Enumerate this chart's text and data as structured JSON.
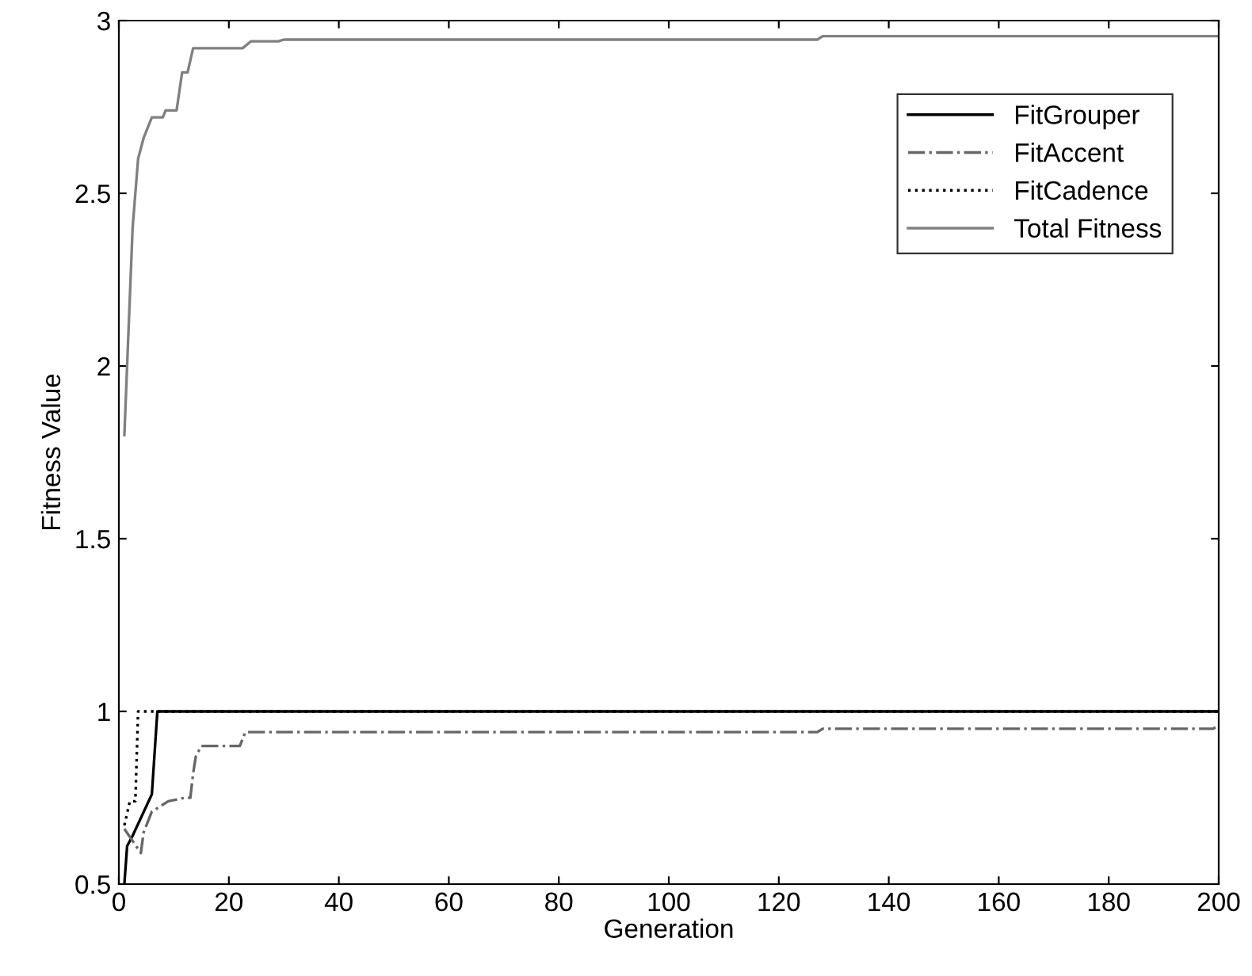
{
  "chart_data": {
    "type": "line",
    "xlabel": "Generation",
    "ylabel": "Fitness Value",
    "xlim": [
      0,
      200
    ],
    "xticks": [
      0,
      20,
      40,
      60,
      80,
      100,
      120,
      140,
      160,
      180,
      200
    ],
    "ylim": [
      0.5,
      3
    ],
    "yticks": [
      0.5,
      1,
      1.5,
      2,
      2.5,
      3
    ],
    "grid": false,
    "legend": "top right",
    "marker": "none",
    "series": [
      {
        "name": "FitGrouper",
        "color": "#000000",
        "line_style": "solid",
        "x": [
          1,
          1.5,
          2.5,
          6,
          7,
          200
        ],
        "values": [
          0.5,
          0.61,
          0.64,
          0.76,
          1,
          1
        ]
      },
      {
        "name": "FitAccent",
        "color": "#666666",
        "line_style": "dashdot",
        "x": [
          1,
          4,
          4.5,
          6,
          9,
          12,
          13,
          13.5,
          14,
          15,
          22,
          23,
          127,
          128,
          199,
          200
        ],
        "values": [
          0.66,
          0.59,
          0.65,
          0.71,
          0.74,
          0.75,
          0.75,
          0.82,
          0.87,
          0.9,
          0.9,
          0.94,
          0.94,
          0.95,
          0.95,
          0.96
        ]
      },
      {
        "name": "FitCadence",
        "color": "#000000",
        "line_style": "dotted",
        "x": [
          1,
          2,
          3,
          3.5,
          200
        ],
        "values": [
          0.67,
          0.74,
          0.74,
          1,
          1
        ]
      },
      {
        "name": "Total Fitness",
        "color": "#808080",
        "line_style": "solid",
        "x": [
          1,
          1.5,
          2.5,
          3.5,
          4.5,
          6,
          8,
          8.5,
          10.5,
          11.5,
          12.5,
          13.5,
          22.5,
          24,
          29,
          30,
          127,
          128,
          200
        ],
        "values": [
          1.8,
          2.0,
          2.4,
          2.6,
          2.66,
          2.72,
          2.72,
          2.74,
          2.74,
          2.85,
          2.85,
          2.92,
          2.92,
          2.94,
          2.94,
          2.945,
          2.945,
          2.955,
          2.955
        ]
      }
    ]
  }
}
